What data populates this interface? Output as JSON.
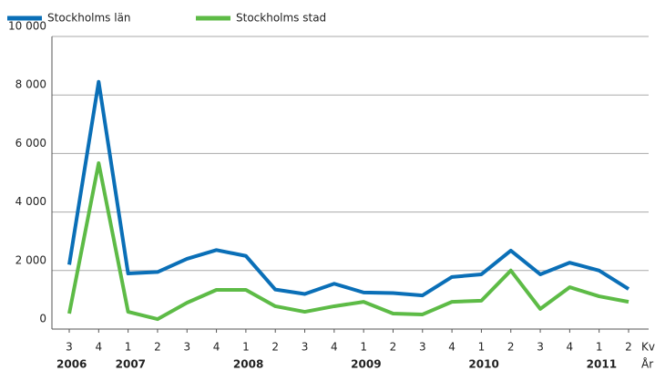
{
  "chart_data": {
    "type": "line",
    "categories": [
      "3",
      "4",
      "1",
      "2",
      "3",
      "4",
      "1",
      "2",
      "3",
      "4",
      "1",
      "2",
      "3",
      "4",
      "1",
      "2",
      "3",
      "4",
      "1",
      "2"
    ],
    "year_labels": [
      "2006",
      null,
      "2007",
      null,
      null,
      null,
      "2008",
      null,
      null,
      null,
      "2009",
      null,
      null,
      null,
      "2010",
      null,
      null,
      null,
      "2011",
      null
    ],
    "x_axis_label": "Kv",
    "year_axis_label": "År",
    "series": [
      {
        "name": "Stockholms län",
        "color": "#0a6fb7",
        "values": [
          2200,
          8450,
          1900,
          1950,
          2400,
          2700,
          2500,
          1350,
          1200,
          1550,
          1250,
          1230,
          1150,
          1780,
          1870,
          2680,
          1870,
          2270,
          2000,
          1370
        ]
      },
      {
        "name": "Stockholms stad",
        "color": "#5dbb46",
        "values": [
          530,
          5670,
          590,
          340,
          900,
          1340,
          1340,
          780,
          590,
          780,
          930,
          530,
          500,
          930,
          970,
          2000,
          690,
          1430,
          1120,
          930
        ]
      }
    ],
    "ylim": [
      0,
      10000
    ],
    "yticks": [
      0,
      {
        "value": 2000,
        "label": "2 000"
      },
      {
        "value": 4000,
        "label": "4 000"
      },
      {
        "value": 6000,
        "label": "6 000"
      },
      {
        "value": 8000,
        "label": "8 000"
      },
      {
        "value": 10000,
        "label": "10 000"
      }
    ],
    "grid": true
  }
}
